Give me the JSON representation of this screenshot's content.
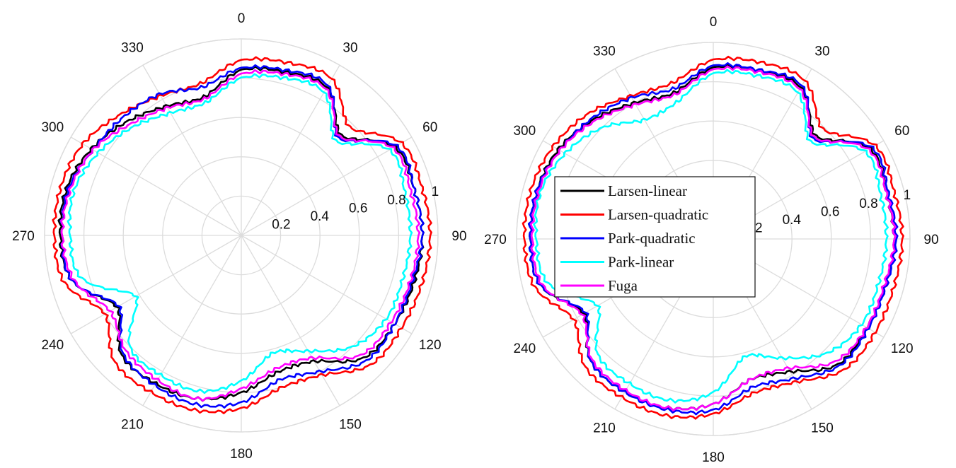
{
  "chart_data": [
    {
      "type": "line",
      "coordinate_system": "polar",
      "theta_ticks": [
        "0",
        "30",
        "60",
        "90",
        "120",
        "150",
        "180",
        "210",
        "240",
        "270",
        "300",
        "330"
      ],
      "r_ticks": [
        "0.2",
        "0.4",
        "0.6",
        "0.8",
        "1"
      ],
      "rlim": [
        0,
        1
      ],
      "theta_zero": "top",
      "theta_direction": "clockwise",
      "grid": true,
      "series": [
        {
          "name": "Larsen-linear",
          "color": "#000000",
          "theta": [
            0,
            15,
            30,
            45,
            60,
            75,
            90,
            105,
            120,
            135,
            150,
            165,
            180,
            195,
            210,
            225,
            240,
            255,
            270,
            285,
            300,
            315,
            330,
            345
          ],
          "r": [
            0.84,
            0.86,
            0.87,
            0.72,
            0.9,
            0.91,
            0.92,
            0.91,
            0.9,
            0.88,
            0.74,
            0.72,
            0.8,
            0.86,
            0.87,
            0.86,
            0.73,
            0.89,
            0.92,
            0.92,
            0.88,
            0.82,
            0.76,
            0.73
          ]
        },
        {
          "name": "Larsen-quadratic",
          "color": "#ff0000",
          "theta": [
            0,
            15,
            30,
            45,
            60,
            75,
            90,
            105,
            120,
            135,
            150,
            165,
            180,
            195,
            210,
            225,
            240,
            255,
            270,
            285,
            300,
            315,
            330,
            345
          ],
          "r": [
            0.89,
            0.91,
            0.92,
            0.78,
            0.94,
            0.95,
            0.96,
            0.95,
            0.94,
            0.93,
            0.82,
            0.8,
            0.88,
            0.92,
            0.92,
            0.91,
            0.8,
            0.93,
            0.95,
            0.95,
            0.93,
            0.87,
            0.82,
            0.8
          ]
        },
        {
          "name": "Park-quadratic",
          "color": "#0000ff",
          "theta": [
            0,
            15,
            30,
            45,
            60,
            75,
            90,
            105,
            120,
            135,
            150,
            165,
            180,
            195,
            210,
            225,
            240,
            255,
            270,
            285,
            300,
            315,
            330,
            345
          ],
          "r": [
            0.85,
            0.87,
            0.88,
            0.7,
            0.91,
            0.91,
            0.92,
            0.9,
            0.9,
            0.9,
            0.8,
            0.76,
            0.85,
            0.89,
            0.88,
            0.85,
            0.72,
            0.89,
            0.91,
            0.91,
            0.87,
            0.85,
            0.83,
            0.78
          ]
        },
        {
          "name": "Park-linear",
          "color": "#00ffff",
          "theta": [
            0,
            15,
            30,
            45,
            60,
            75,
            90,
            105,
            120,
            135,
            150,
            165,
            180,
            195,
            210,
            225,
            240,
            255,
            270,
            285,
            300,
            315,
            330,
            345
          ],
          "r": [
            0.8,
            0.83,
            0.84,
            0.68,
            0.87,
            0.86,
            0.86,
            0.85,
            0.85,
            0.8,
            0.68,
            0.62,
            0.74,
            0.82,
            0.82,
            0.8,
            0.62,
            0.84,
            0.87,
            0.88,
            0.84,
            0.78,
            0.72,
            0.7
          ]
        },
        {
          "name": "Fuga",
          "color": "#ff00ff",
          "theta": [
            0,
            15,
            30,
            45,
            60,
            75,
            90,
            105,
            120,
            135,
            150,
            165,
            180,
            195,
            210,
            225,
            240,
            255,
            270,
            285,
            300,
            315,
            330,
            345
          ],
          "r": [
            0.82,
            0.85,
            0.86,
            0.71,
            0.89,
            0.89,
            0.9,
            0.89,
            0.88,
            0.86,
            0.72,
            0.7,
            0.78,
            0.86,
            0.85,
            0.83,
            0.77,
            0.88,
            0.91,
            0.9,
            0.87,
            0.8,
            0.75,
            0.72
          ]
        }
      ]
    },
    {
      "type": "line",
      "coordinate_system": "polar",
      "theta_ticks": [
        "0",
        "30",
        "60",
        "90",
        "120",
        "150",
        "180",
        "210",
        "240",
        "270",
        "300",
        "330"
      ],
      "r_ticks": [
        "0.2",
        "0.4",
        "0.6",
        "0.8",
        "1"
      ],
      "rlim": [
        0,
        1
      ],
      "theta_zero": "top",
      "theta_direction": "clockwise",
      "grid": true,
      "legend": {
        "placement": "center-left",
        "entries": [
          "Larsen-linear",
          "Larsen-quadratic",
          "Park-quadratic",
          "Park-linear",
          "Fuga"
        ]
      },
      "series": [
        {
          "name": "Larsen-linear",
          "color": "#000000",
          "theta": [
            0,
            15,
            30,
            45,
            60,
            75,
            90,
            105,
            120,
            135,
            150,
            165,
            180,
            195,
            210,
            225,
            240,
            255,
            270,
            285,
            300,
            315,
            330,
            345
          ],
          "r": [
            0.87,
            0.89,
            0.89,
            0.74,
            0.92,
            0.91,
            0.92,
            0.91,
            0.9,
            0.9,
            0.78,
            0.74,
            0.84,
            0.89,
            0.9,
            0.88,
            0.76,
            0.91,
            0.93,
            0.93,
            0.91,
            0.86,
            0.8,
            0.77
          ]
        },
        {
          "name": "Larsen-quadratic",
          "color": "#ff0000",
          "theta": [
            0,
            15,
            30,
            45,
            60,
            75,
            90,
            105,
            120,
            135,
            150,
            165,
            180,
            195,
            210,
            225,
            240,
            255,
            270,
            285,
            300,
            315,
            330,
            345
          ],
          "r": [
            0.91,
            0.93,
            0.93,
            0.79,
            0.95,
            0.95,
            0.96,
            0.95,
            0.95,
            0.94,
            0.84,
            0.81,
            0.89,
            0.93,
            0.93,
            0.92,
            0.82,
            0.94,
            0.96,
            0.96,
            0.94,
            0.9,
            0.84,
            0.82
          ]
        },
        {
          "name": "Park-quadratic",
          "color": "#0000ff",
          "theta": [
            0,
            15,
            30,
            45,
            60,
            75,
            90,
            105,
            120,
            135,
            150,
            165,
            180,
            195,
            210,
            225,
            240,
            255,
            270,
            285,
            300,
            315,
            330,
            345
          ],
          "r": [
            0.88,
            0.89,
            0.9,
            0.72,
            0.93,
            0.92,
            0.93,
            0.91,
            0.91,
            0.91,
            0.82,
            0.78,
            0.87,
            0.9,
            0.9,
            0.88,
            0.75,
            0.91,
            0.93,
            0.93,
            0.9,
            0.87,
            0.83,
            0.79
          ]
        },
        {
          "name": "Park-linear",
          "color": "#00ffff",
          "theta": [
            0,
            15,
            30,
            45,
            60,
            75,
            90,
            105,
            120,
            135,
            150,
            165,
            180,
            195,
            210,
            225,
            240,
            255,
            270,
            285,
            300,
            315,
            330,
            345
          ],
          "r": [
            0.84,
            0.86,
            0.86,
            0.7,
            0.89,
            0.88,
            0.88,
            0.87,
            0.87,
            0.82,
            0.7,
            0.62,
            0.78,
            0.85,
            0.85,
            0.83,
            0.68,
            0.87,
            0.9,
            0.91,
            0.87,
            0.8,
            0.7,
            0.72
          ]
        },
        {
          "name": "Fuga",
          "color": "#ff00ff",
          "theta": [
            0,
            15,
            30,
            45,
            60,
            75,
            90,
            105,
            120,
            135,
            150,
            165,
            180,
            195,
            210,
            225,
            240,
            255,
            270,
            285,
            300,
            315,
            330,
            345
          ],
          "r": [
            0.86,
            0.88,
            0.88,
            0.73,
            0.91,
            0.91,
            0.92,
            0.9,
            0.9,
            0.88,
            0.76,
            0.74,
            0.84,
            0.89,
            0.89,
            0.87,
            0.77,
            0.9,
            0.92,
            0.92,
            0.9,
            0.85,
            0.79,
            0.76
          ]
        }
      ]
    }
  ]
}
